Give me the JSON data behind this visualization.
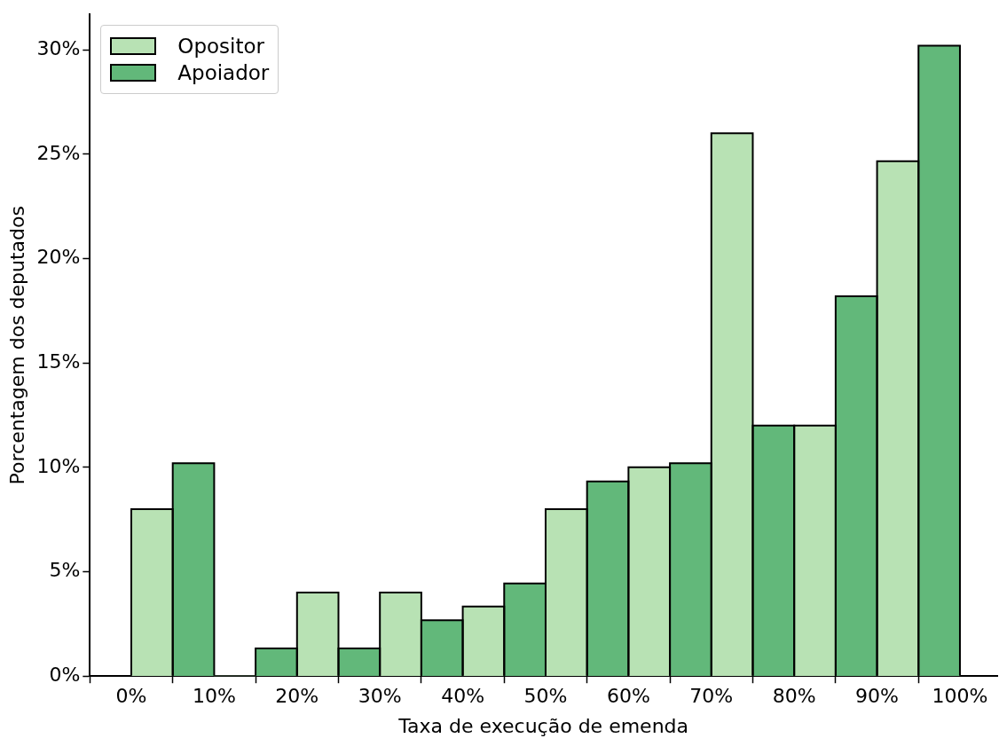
{
  "chart_data": {
    "type": "histogram",
    "xlabel": "Taxa de execução de emenda",
    "ylabel": "Porcentagem dos deputados",
    "bins": [
      0,
      10,
      20,
      30,
      40,
      50,
      60,
      70,
      80,
      90,
      100
    ],
    "series": [
      {
        "name": "Opositor",
        "color": "#b8e2b4",
        "values": [
          8.0,
          0,
          4.0,
          4.0,
          3.33,
          8.0,
          10.0,
          26.0,
          12.0,
          24.67
        ]
      },
      {
        "name": "Apoiador",
        "color": "#62b87a",
        "values": [
          10.2,
          1.33,
          1.33,
          2.67,
          4.44,
          9.33,
          10.2,
          12.0,
          18.2,
          30.2
        ]
      }
    ],
    "xlim": [
      -5,
      104.5
    ],
    "ylim": [
      0,
      31.7
    ],
    "xticks": [
      {
        "value": 0,
        "label": "0%"
      },
      {
        "value": 10,
        "label": "10%"
      },
      {
        "value": 20,
        "label": "20%"
      },
      {
        "value": 30,
        "label": "30%"
      },
      {
        "value": 40,
        "label": "40%"
      },
      {
        "value": 50,
        "label": "50%"
      },
      {
        "value": 60,
        "label": "60%"
      },
      {
        "value": 70,
        "label": "70%"
      },
      {
        "value": 80,
        "label": "80%"
      },
      {
        "value": 90,
        "label": "90%"
      },
      {
        "value": 100,
        "label": "100%"
      }
    ],
    "yticks": [
      {
        "value": 0,
        "label": "0%"
      },
      {
        "value": 5,
        "label": "5%"
      },
      {
        "value": 10,
        "label": "10%"
      },
      {
        "value": 15,
        "label": "15%"
      },
      {
        "value": 20,
        "label": "20%"
      },
      {
        "value": 25,
        "label": "25%"
      },
      {
        "value": 30,
        "label": "30%"
      }
    ],
    "grid": false,
    "legend": "top left"
  }
}
